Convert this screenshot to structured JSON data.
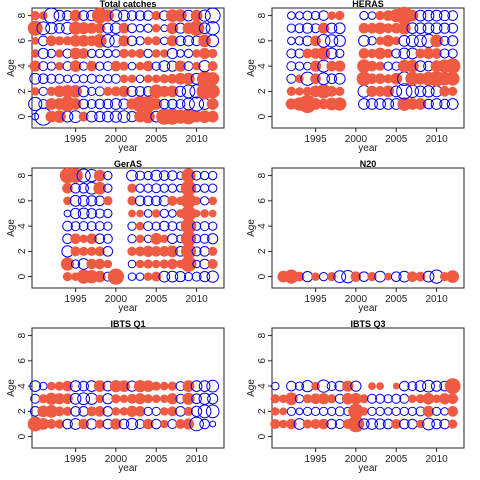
{
  "figure": {
    "marker_colors": {
      "positive": "#ef5b42",
      "negative": "#0000ee"
    }
  },
  "chart_data": [
    {
      "type": "scatter",
      "title": "Total catches",
      "xlabel": "year",
      "ylabel": "Age",
      "xlim": [
        1989.6,
        2013.4
      ],
      "ylim": [
        -0.9,
        8.6
      ],
      "xticks": [
        1995,
        2000,
        2005,
        2010
      ],
      "yticks": [
        0,
        2,
        4,
        6,
        8
      ],
      "years": [
        1990,
        1991,
        1992,
        1993,
        1994,
        1995,
        1996,
        1997,
        1998,
        1999,
        2000,
        2001,
        2002,
        2003,
        2004,
        2005,
        2006,
        2007,
        2008,
        2009,
        2010,
        2011,
        2012
      ],
      "ages": [
        0,
        1,
        2,
        3,
        4,
        5,
        6,
        7,
        8
      ],
      "residuals": [
        [
          -0.4,
          -2.5,
          1.0,
          1.2,
          -1.0,
          -1.2,
          0.7,
          -1.0,
          -0.9,
          -1.0,
          -1.1,
          -1.2,
          -0.9,
          1.0,
          1.3,
          -1.0,
          2.0,
          2.0,
          1.5,
          1.8,
          1.0,
          1.2,
          1.0
        ],
        [
          -1.5,
          -0.7,
          1.0,
          1.0,
          1.8,
          1.0,
          -0.8,
          -0.7,
          -0.8,
          -0.8,
          -1.0,
          -0.9,
          0.9,
          2.0,
          2.0,
          1.0,
          -0.8,
          -0.8,
          -0.7,
          -1.2,
          -1.7,
          -1.0,
          1.0
        ],
        [
          0.5,
          -0.6,
          0.6,
          1.0,
          1.2,
          1.2,
          -1.0,
          -0.6,
          -0.7,
          0.6,
          0.7,
          0.9,
          -0.9,
          -0.8,
          -0.8,
          1.4,
          0.9,
          1.0,
          -0.9,
          -1.4,
          -1.5,
          2.0,
          1.5
        ],
        [
          -1.0,
          -0.8,
          -0.7,
          -0.7,
          -0.5,
          -0.6,
          -0.6,
          -0.7,
          -0.5,
          -0.6,
          -0.7,
          0.5,
          0.5,
          -0.5,
          0.5,
          0.5,
          0.6,
          0.7,
          1.0,
          1.1,
          -1.0,
          1.8,
          1.3
        ],
        [
          0.9,
          -0.7,
          -0.6,
          0.5,
          -0.7,
          1.0,
          -0.6,
          0.8,
          -0.6,
          -0.7,
          0.8,
          0.6,
          -0.5,
          0.5,
          0.8,
          -0.6,
          -1.0,
          -0.9,
          0.9,
          -0.7,
          0.5,
          -1.1,
          0.7
        ],
        [
          0.5,
          -0.9,
          -0.6,
          0.5,
          -0.7,
          1.0,
          0.8,
          -0.6,
          -0.6,
          -0.6,
          -0.5,
          0.6,
          0.5,
          0.6,
          -0.6,
          0.5,
          0.5,
          -0.9,
          -0.5,
          -0.6,
          0.5,
          0.9,
          0.6
        ],
        [
          0.4,
          -0.8,
          0.8,
          0.6,
          0.6,
          1.0,
          1.0,
          0.8,
          1.4,
          -1.4,
          -1.3,
          0.9,
          -0.8,
          -0.6,
          0.5,
          0.6,
          -0.5,
          0.9,
          -0.8,
          -0.9,
          -0.8,
          1.2,
          -1.2
        ],
        [
          1.7,
          -1.4,
          -1.1,
          -0.8,
          -1.2,
          1.3,
          1.1,
          0.9,
          0.8,
          -0.9,
          -1.0,
          0.8,
          -0.7,
          -0.5,
          -0.6,
          0.5,
          -0.4,
          1.0,
          -0.9,
          1.0,
          1.8,
          -1.0,
          -1.5
        ],
        [
          0.6,
          0.5,
          -1.9,
          -1.0,
          -0.8,
          1.0,
          -0.8,
          -0.9,
          1.9,
          1.1,
          -1.2,
          -1.0,
          -0.8,
          -0.8,
          -0.8,
          0.6,
          -0.8,
          1.2,
          1.2,
          -1.0,
          1.0,
          -1.1,
          -1.9
        ]
      ]
    },
    {
      "type": "scatter",
      "title": "HERAS",
      "xlabel": "year",
      "ylabel": "Age",
      "xlim": [
        1989.6,
        2013.4
      ],
      "ylim": [
        -0.9,
        8.6
      ],
      "xticks": [
        1995,
        2000,
        2005,
        2010
      ],
      "yticks": [
        0,
        2,
        4,
        6,
        8
      ],
      "years": [
        1990,
        1991,
        1992,
        1993,
        1994,
        1995,
        1996,
        1997,
        1998,
        1999,
        2000,
        2001,
        2002,
        2003,
        2004,
        2005,
        2006,
        2007,
        2008,
        2009,
        2010,
        2011,
        2012
      ],
      "ages": [
        1,
        2,
        3,
        4,
        5,
        6,
        7,
        8
      ],
      "residuals": [
        [
          0,
          0,
          0.9,
          1.3,
          2.5,
          1.0,
          0.8,
          1.2,
          1.3,
          0,
          0,
          -1.0,
          -1.0,
          -1.0,
          -1.0,
          -1.0,
          1.4,
          1.0,
          1.0,
          -0.8,
          -1.0,
          -0.8,
          -1.0
        ],
        [
          0,
          0,
          0.6,
          0.5,
          0.6,
          1.0,
          1.6,
          0.8,
          0.6,
          0,
          0,
          -1.2,
          0.9,
          0.8,
          1.0,
          -1.0,
          -2.0,
          -1.3,
          -1.0,
          -1.1,
          -1.0,
          0.8,
          0.6
        ],
        [
          0,
          0,
          -0.7,
          0.5,
          -1.5,
          0.8,
          -1.2,
          -0.8,
          -1.0,
          0,
          0,
          1.6,
          0.8,
          0.8,
          0.6,
          1.0,
          -1.6,
          1.5,
          1.0,
          1.4,
          1.8,
          1.4,
          1.4
        ],
        [
          0,
          0,
          -0.7,
          -0.6,
          -0.5,
          0.9,
          -1.2,
          0.8,
          0.9,
          0,
          0,
          1.4,
          0.8,
          0.6,
          -0.6,
          -0.6,
          1.2,
          1.2,
          -1.0,
          -0.8,
          1.0,
          1.3,
          1.8
        ],
        [
          0,
          0,
          -0.7,
          -0.7,
          0.7,
          0.8,
          1.3,
          -1.0,
          -0.6,
          0,
          0,
          0.8,
          0.6,
          1.0,
          0.6,
          -0.7,
          -1.0,
          -1.0,
          0.7,
          0.9,
          0.8,
          -0.7,
          -0.7
        ],
        [
          0,
          0,
          -0.5,
          -0.6,
          -0.8,
          0.8,
          -1.4,
          -1.3,
          -1.1,
          0,
          0,
          -1.0,
          -0.6,
          0.5,
          1.0,
          0.5,
          -1.0,
          -1.2,
          -1.2,
          -1.5,
          1.2,
          -0.7,
          -0.9
        ],
        [
          0,
          0,
          -0.6,
          -0.7,
          -0.9,
          -0.7,
          0.9,
          -0.9,
          -1.0,
          0,
          0,
          0.8,
          0.8,
          1.0,
          0.7,
          0.8,
          1.2,
          -1.0,
          -1.0,
          -1.0,
          -1.0,
          -0.9,
          -0.8
        ],
        [
          0,
          0,
          -0.5,
          -0.5,
          -0.7,
          -0.6,
          -0.8,
          0.5,
          0.6,
          0,
          0,
          -0.6,
          -0.5,
          0.6,
          0.8,
          1.3,
          2.4,
          1.0,
          -1.0,
          -1.0,
          -1.0,
          -0.9,
          -0.8
        ]
      ]
    },
    {
      "type": "scatter",
      "title": "GerAS",
      "xlabel": "year",
      "ylabel": "Age",
      "xlim": [
        1989.6,
        2013.4
      ],
      "ylim": [
        -0.9,
        8.6
      ],
      "xticks": [
        1995,
        2000,
        2005,
        2010
      ],
      "yticks": [
        0,
        2,
        4,
        6,
        8
      ],
      "years": [
        1990,
        1991,
        1992,
        1993,
        1994,
        1995,
        1996,
        1997,
        1998,
        1999,
        2000,
        2001,
        2002,
        2003,
        2004,
        2005,
        2006,
        2007,
        2008,
        2009,
        2010,
        2011,
        2012
      ],
      "ages": [
        0,
        1,
        2,
        3,
        4,
        5,
        6,
        7,
        8
      ],
      "residuals": [
        [
          0,
          0,
          0,
          0,
          0.6,
          0.5,
          1.5,
          1.3,
          1.0,
          -0.7,
          2.0,
          0,
          -0.5,
          -0.5,
          0.5,
          0.7,
          -1.0,
          -1.0,
          -0.9,
          -0.6,
          -0.7,
          -0.9,
          -1.1
        ],
        [
          0,
          0,
          0,
          0,
          1.3,
          -0.6,
          -1.0,
          0.8,
          0.8,
          0.5,
          0,
          0,
          -0.5,
          0.5,
          0.6,
          0.5,
          0.6,
          0.8,
          0.5,
          1.9,
          -0.5,
          -0.8,
          0.7
        ],
        [
          0,
          0,
          0,
          0,
          -1.1,
          0.7,
          0.6,
          0.6,
          0.7,
          -0.8,
          0,
          0,
          0.6,
          0.7,
          0.9,
          0.8,
          0.8,
          1.0,
          -0.8,
          1.7,
          -0.7,
          -0.8,
          0.6
        ],
        [
          0,
          0,
          0,
          0,
          -0.8,
          0.8,
          0.5,
          0.8,
          -0.8,
          -0.7,
          0,
          0,
          -0.6,
          0.5,
          -0.5,
          1.0,
          0.5,
          -0.8,
          -0.5,
          1.8,
          -0.6,
          -0.7,
          -0.9
        ],
        [
          0,
          0,
          0,
          0,
          -0.8,
          -0.7,
          -0.7,
          -0.7,
          -0.7,
          -0.6,
          0,
          0,
          -0.6,
          0.5,
          -0.7,
          -0.6,
          -0.8,
          -0.7,
          -0.6,
          1.8,
          -0.6,
          -0.7,
          -0.6
        ],
        [
          0,
          0,
          0,
          0,
          -0.4,
          -0.9,
          -1.0,
          -0.8,
          -0.7,
          -0.6,
          0,
          0,
          0.4,
          0.4,
          -0.5,
          0.5,
          -0.6,
          -0.5,
          0.5,
          1.8,
          0.4,
          0.5,
          0.4
        ],
        [
          0,
          0,
          0,
          0,
          0.5,
          -1.0,
          -1.0,
          -0.9,
          -0.8,
          0.6,
          0,
          0,
          0.6,
          -0.8,
          -0.8,
          -0.8,
          -0.9,
          0.7,
          0.5,
          1.8,
          0.5,
          -0.6,
          0.5
        ],
        [
          0,
          0,
          0,
          0,
          0.8,
          -0.8,
          -0.8,
          -1.2,
          1.2,
          -0.6,
          0,
          0,
          0.6,
          -0.6,
          -0.6,
          -0.7,
          -0.6,
          -0.6,
          -0.5,
          1.8,
          -0.5,
          -0.6,
          -0.6
        ],
        [
          0,
          0,
          0,
          0,
          1.8,
          1.6,
          -1.5,
          -1.3,
          1.0,
          -0.6,
          0,
          0,
          -1.0,
          -0.7,
          -0.6,
          -1.0,
          -0.8,
          -0.8,
          -0.5,
          1.5,
          -0.7,
          -0.6,
          -0.6
        ]
      ]
    },
    {
      "type": "scatter",
      "title": "N20",
      "xlabel": "year",
      "ylabel": "Age",
      "xlim": [
        1989.6,
        2013.4
      ],
      "ylim": [
        -0.9,
        8.6
      ],
      "xticks": [
        1995,
        2000,
        2005,
        2010
      ],
      "yticks": [
        0,
        2,
        4,
        6,
        8
      ],
      "years": [
        1990,
        1991,
        1992,
        1993,
        1994,
        1995,
        1996,
        1997,
        1998,
        1999,
        2000,
        2001,
        2002,
        2003,
        2004,
        2005,
        2006,
        2007,
        2008,
        2009,
        2010,
        2011,
        2012
      ],
      "ages": [
        0
      ],
      "residuals": [
        [
          0,
          1.0,
          1.5,
          0.7,
          -0.9,
          0.5,
          -0.6,
          0.6,
          -1.2,
          -1.3,
          0.8,
          -0.8,
          0.6,
          -1.0,
          0.4,
          -0.8,
          -1.0,
          0.8,
          0.7,
          -1.0,
          -1.5,
          0.6,
          1.2
        ]
      ]
    },
    {
      "type": "scatter",
      "title": "IBTS Q1",
      "xlabel": "year",
      "ylabel": "Age",
      "xlim": [
        1989.6,
        2013.4
      ],
      "ylim": [
        -0.9,
        8.6
      ],
      "xticks": [
        1995,
        2000,
        2005,
        2010
      ],
      "yticks": [
        0,
        2,
        4,
        6,
        8
      ],
      "years": [
        1990,
        1991,
        1992,
        1993,
        1994,
        1995,
        1996,
        1997,
        1998,
        1999,
        2000,
        2001,
        2002,
        2003,
        2004,
        2005,
        2006,
        2007,
        2008,
        2009,
        2010,
        2011,
        2012
      ],
      "ages": [
        1,
        2,
        3,
        4
      ],
      "residuals": [
        [
          1.7,
          1.0,
          0.7,
          0.6,
          -0.8,
          -1.0,
          0.8,
          -0.9,
          0.6,
          -0.8,
          0.9,
          -0.8,
          -1.1,
          -0.7,
          0.8,
          -0.8,
          0.5,
          -0.7,
          0.7,
          0.9,
          -1.6,
          -0.8,
          -0.3
        ],
        [
          -0.8,
          1.0,
          1.2,
          0.7,
          0.6,
          -0.8,
          -0.8,
          0.7,
          0.8,
          -0.8,
          0.5,
          0.5,
          0.9,
          0.8,
          -0.6,
          -0.6,
          0.5,
          0.7,
          -0.8,
          0.6,
          -0.9,
          -1.4,
          -1.4
        ],
        [
          -0.7,
          0.6,
          1.1,
          0.9,
          0.8,
          -1.0,
          -1.2,
          -1.1,
          0.5,
          -0.9,
          0.6,
          0.5,
          0.7,
          0.9,
          0.6,
          0.5,
          0.5,
          0.9,
          -0.7,
          1.1,
          -0.8,
          -1.1,
          -0.9
        ],
        [
          -1.0,
          -0.5,
          0.5,
          0.6,
          0.8,
          -1.0,
          -0.8,
          -1.0,
          1.0,
          -0.8,
          1.1,
          1.0,
          -0.9,
          1.1,
          1.0,
          0.6,
          0.5,
          0.6,
          -0.7,
          1.0,
          -1.0,
          -1.0,
          -1.2
        ]
      ]
    },
    {
      "type": "scatter",
      "title": "IBTS Q3",
      "xlabel": "year",
      "ylabel": "Age",
      "xlim": [
        1989.6,
        2013.4
      ],
      "ylim": [
        -0.9,
        8.6
      ],
      "xticks": [
        1995,
        2000,
        2005,
        2010
      ],
      "yticks": [
        0,
        2,
        4,
        6,
        8
      ],
      "years": [
        1990,
        1991,
        1992,
        1993,
        1994,
        1995,
        1996,
        1997,
        1998,
        1999,
        2000,
        2001,
        2002,
        2003,
        2004,
        2005,
        2006,
        2007,
        2008,
        2009,
        2010,
        2011,
        2012
      ],
      "ages": [
        0,
        1,
        2,
        3,
        4,
        5
      ],
      "residuals": [
        [
          0,
          0,
          0,
          0,
          0,
          0,
          0,
          0,
          0,
          0,
          0,
          0,
          0,
          0,
          0,
          0,
          0,
          0,
          0,
          0,
          0,
          0,
          0
        ],
        [
          0.7,
          0.5,
          0.8,
          -1.0,
          0.6,
          0.7,
          0.8,
          -0.8,
          -0.7,
          0.7,
          2.1,
          -0.9,
          -1.0,
          -0.9,
          -0.8,
          0.7,
          -0.8,
          -0.8,
          0.5,
          -1.2,
          -0.8,
          -0.8,
          0.6
        ],
        [
          0.5,
          0.4,
          -0.6,
          -0.4,
          -0.6,
          -0.6,
          -0.6,
          -0.6,
          -0.7,
          -0.6,
          1.8,
          0.5,
          -0.6,
          -0.6,
          -0.5,
          -0.6,
          -0.6,
          -0.6,
          -0.7,
          0.9,
          -0.6,
          -0.5,
          0.8
        ],
        [
          0.6,
          0.5,
          1.2,
          -0.6,
          0.6,
          0.8,
          0.9,
          0.6,
          -0.7,
          1.0,
          1.0,
          0.6,
          -0.7,
          -0.7,
          -0.6,
          -0.7,
          -0.7,
          0.5,
          0.6,
          1.0,
          0.5,
          0.9,
          0.8
        ],
        [
          -0.5,
          0,
          -0.8,
          -0.6,
          -1.1,
          0.5,
          -1.3,
          -0.7,
          -0.8,
          0.9,
          -0.9,
          0,
          0.4,
          0.4,
          0,
          0.3,
          -0.8,
          -0.7,
          -1.0,
          -1.2,
          -0.9,
          -0.8,
          1.9
        ],
        [
          0,
          0,
          0,
          0,
          0,
          0,
          0,
          0,
          0,
          0,
          0,
          0,
          0,
          0,
          0,
          0,
          0,
          0,
          0,
          0,
          0,
          0,
          0
        ]
      ]
    }
  ]
}
